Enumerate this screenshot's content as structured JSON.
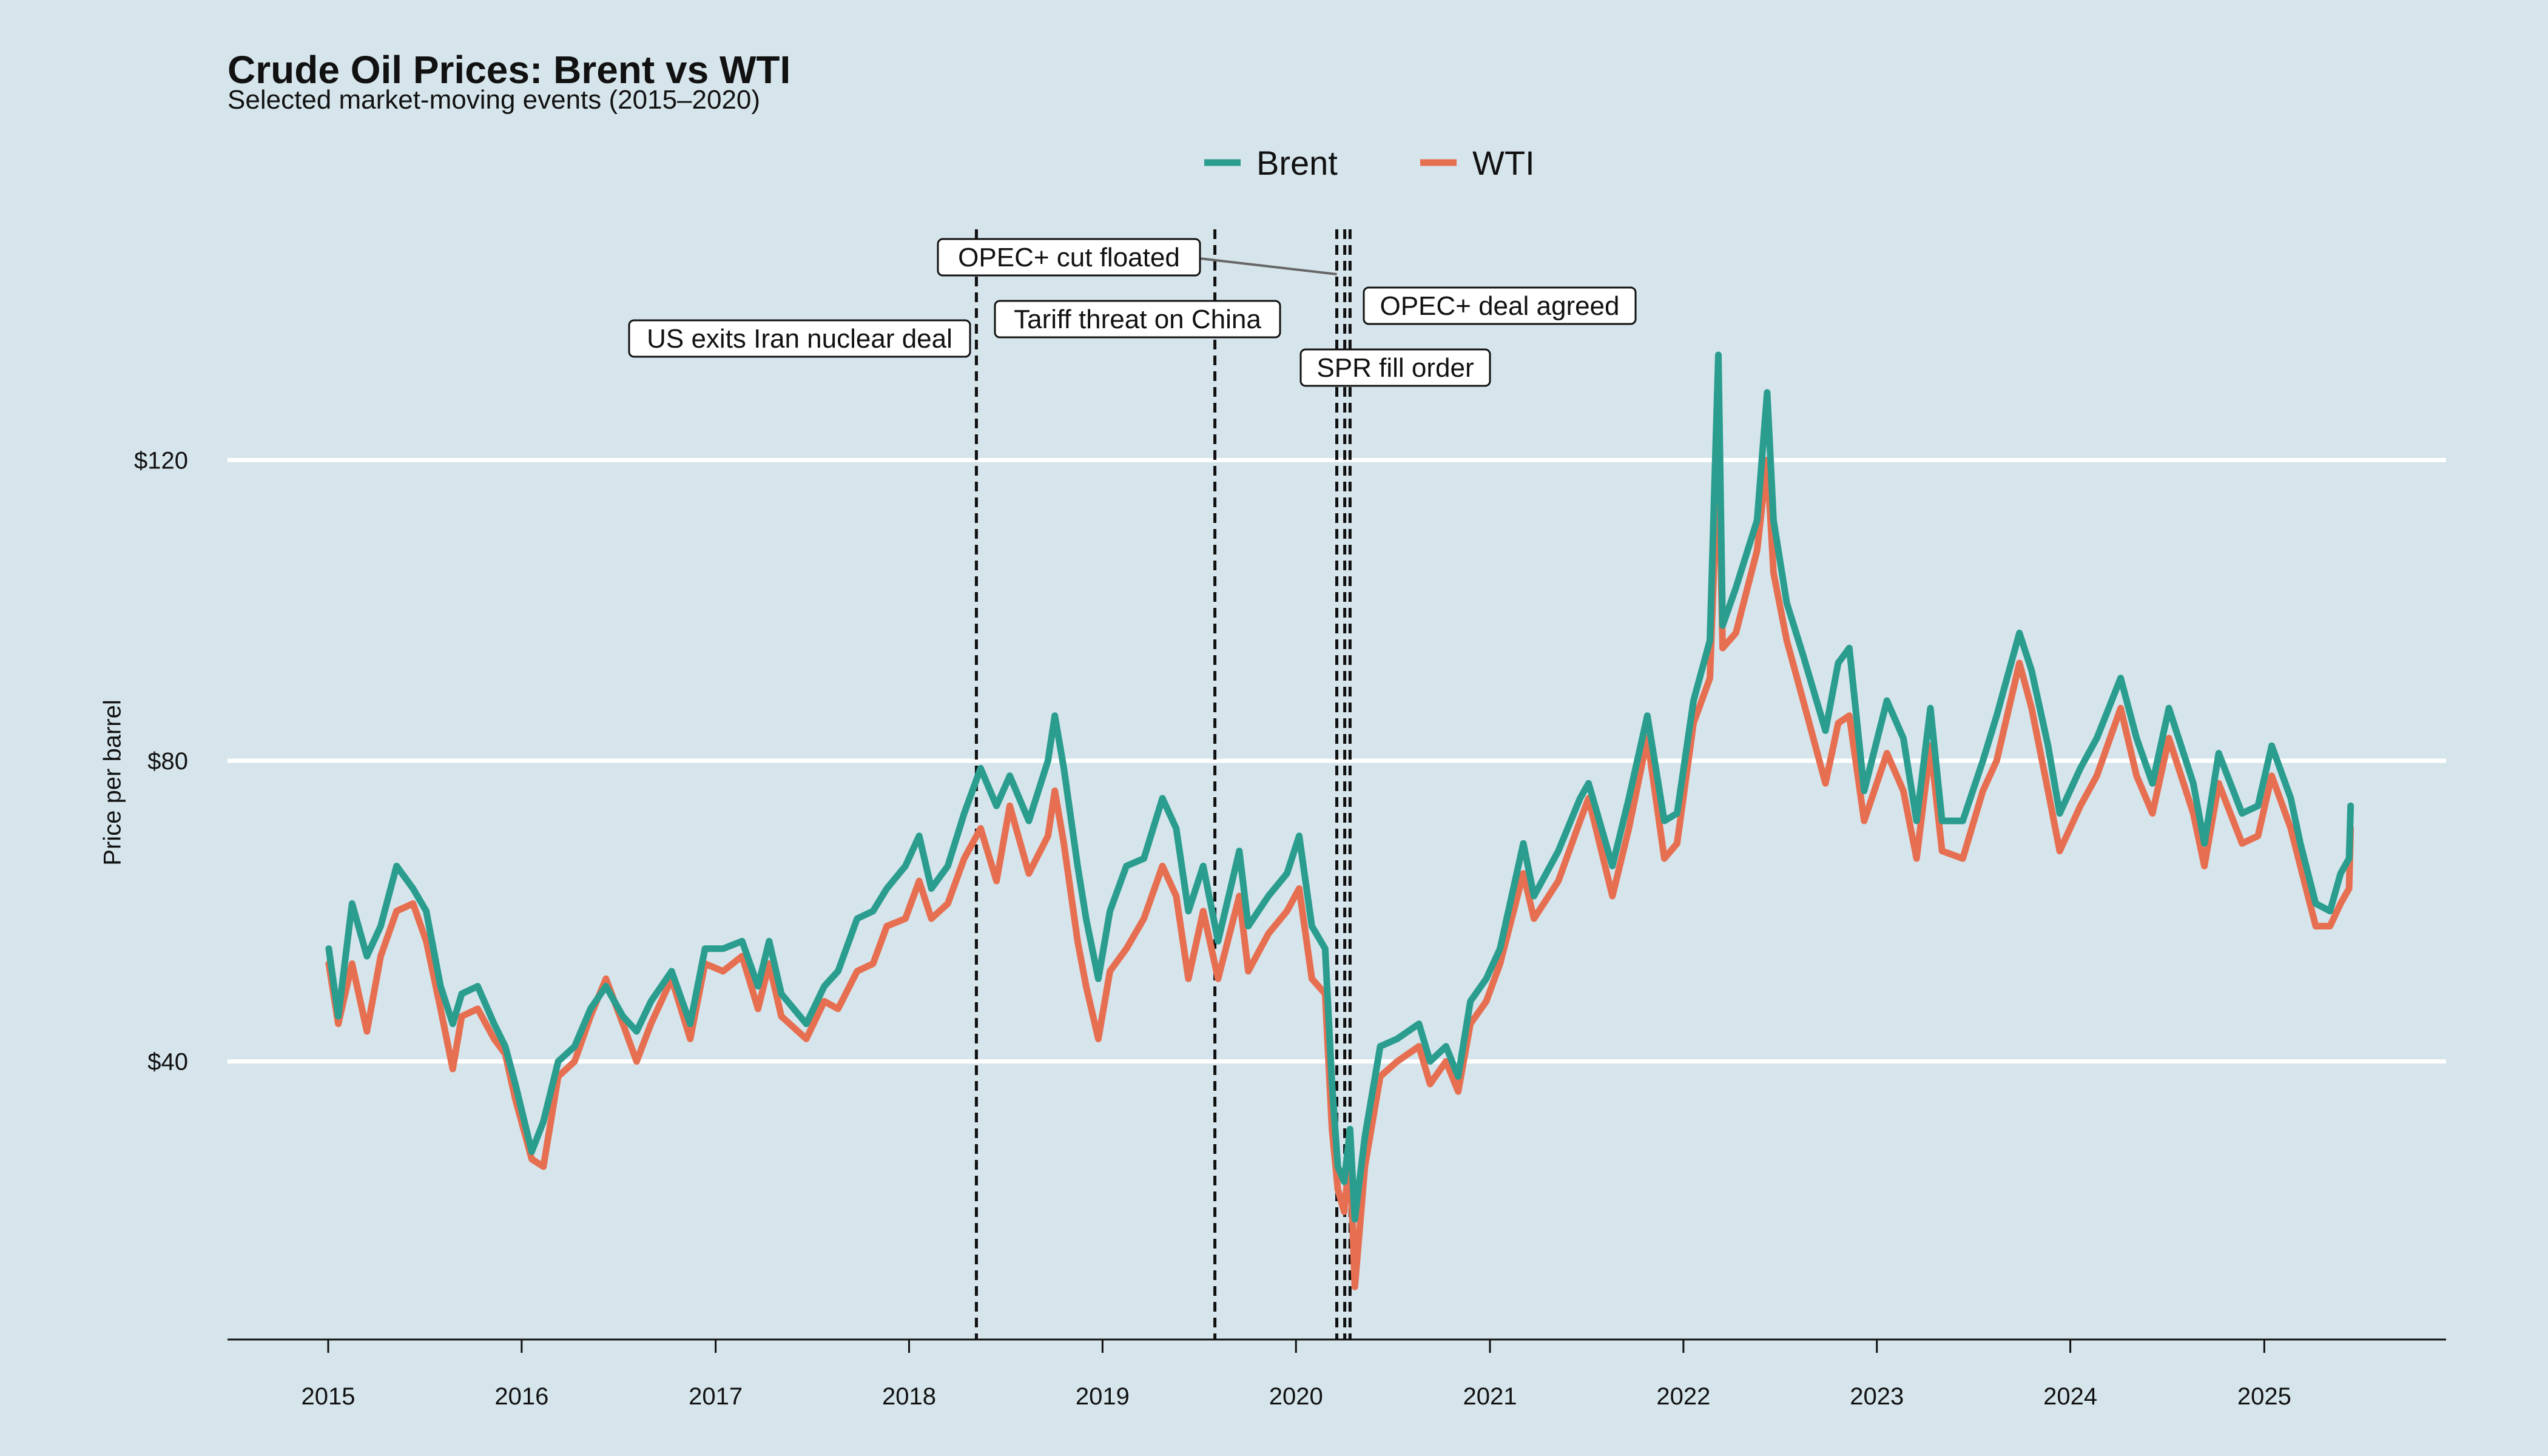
{
  "chart_data": {
    "type": "line",
    "title": "Crude Oil Prices: Brent vs WTI",
    "subtitle": "Selected market-moving events (2015–2020)",
    "xlabel": "",
    "ylabel": "Price per barrel",
    "x_ticks": [
      "2015",
      "2016",
      "2017",
      "2018",
      "2019",
      "2020",
      "2021",
      "2022",
      "2023",
      "2024",
      "2025"
    ],
    "y_ticks": [
      {
        "value": 40,
        "label": "$40"
      },
      {
        "value": 80,
        "label": "$80"
      },
      {
        "value": 120,
        "label": "$120"
      }
    ],
    "xlim": [
      "2014-06-25",
      "2025-12-10"
    ],
    "ylim": [
      3,
      157
    ],
    "grid": "horizontal",
    "legend_position": "top-center",
    "series": [
      {
        "name": "Brent",
        "color": "#2a9d8f",
        "points": [
          [
            "2015-01-02",
            55
          ],
          [
            "2015-01-20",
            46
          ],
          [
            "2015-02-15",
            61
          ],
          [
            "2015-03-15",
            54
          ],
          [
            "2015-04-10",
            58
          ],
          [
            "2015-05-10",
            66
          ],
          [
            "2015-06-10",
            63
          ],
          [
            "2015-07-05",
            60
          ],
          [
            "2015-08-01",
            50
          ],
          [
            "2015-08-24",
            45
          ],
          [
            "2015-09-10",
            49
          ],
          [
            "2015-10-10",
            50
          ],
          [
            "2015-11-10",
            45
          ],
          [
            "2015-12-01",
            42
          ],
          [
            "2015-12-20",
            37
          ],
          [
            "2016-01-20",
            28
          ],
          [
            "2016-02-11",
            32
          ],
          [
            "2016-03-10",
            40
          ],
          [
            "2016-04-10",
            42
          ],
          [
            "2016-05-10",
            47
          ],
          [
            "2016-06-08",
            50
          ],
          [
            "2016-07-10",
            46
          ],
          [
            "2016-08-05",
            44
          ],
          [
            "2016-09-01",
            48
          ],
          [
            "2016-10-10",
            52
          ],
          [
            "2016-11-14",
            45
          ],
          [
            "2016-12-12",
            55
          ],
          [
            "2017-01-15",
            55
          ],
          [
            "2017-02-20",
            56
          ],
          [
            "2017-03-22",
            50
          ],
          [
            "2017-04-12",
            56
          ],
          [
            "2017-05-05",
            49
          ],
          [
            "2017-06-21",
            45
          ],
          [
            "2017-07-25",
            50
          ],
          [
            "2017-08-20",
            52
          ],
          [
            "2017-09-25",
            59
          ],
          [
            "2017-10-25",
            60
          ],
          [
            "2017-11-20",
            63
          ],
          [
            "2017-12-25",
            66
          ],
          [
            "2018-01-20",
            70
          ],
          [
            "2018-02-12",
            63
          ],
          [
            "2018-03-15",
            66
          ],
          [
            "2018-04-15",
            73
          ],
          [
            "2018-05-16",
            79
          ],
          [
            "2018-06-15",
            74
          ],
          [
            "2018-07-10",
            78
          ],
          [
            "2018-08-15",
            72
          ],
          [
            "2018-09-20",
            80
          ],
          [
            "2018-10-03",
            86
          ],
          [
            "2018-10-20",
            79
          ],
          [
            "2018-11-15",
            66
          ],
          [
            "2018-12-01",
            59
          ],
          [
            "2018-12-24",
            51
          ],
          [
            "2019-01-15",
            60
          ],
          [
            "2019-02-15",
            66
          ],
          [
            "2019-03-20",
            67
          ],
          [
            "2019-04-24",
            75
          ],
          [
            "2019-05-20",
            71
          ],
          [
            "2019-06-12",
            60
          ],
          [
            "2019-07-10",
            66
          ],
          [
            "2019-08-07",
            56
          ],
          [
            "2019-09-16",
            68
          ],
          [
            "2019-10-03",
            58
          ],
          [
            "2019-11-10",
            62
          ],
          [
            "2019-12-15",
            65
          ],
          [
            "2020-01-07",
            70
          ],
          [
            "2020-01-31",
            58
          ],
          [
            "2020-02-25",
            55
          ],
          [
            "2020-03-09",
            37
          ],
          [
            "2020-03-20",
            26
          ],
          [
            "2020-04-01",
            24
          ],
          [
            "2020-04-12",
            31
          ],
          [
            "2020-04-21",
            19
          ],
          [
            "2020-05-10",
            30
          ],
          [
            "2020-06-08",
            42
          ],
          [
            "2020-07-10",
            43
          ],
          [
            "2020-08-20",
            45
          ],
          [
            "2020-09-10",
            40
          ],
          [
            "2020-10-10",
            42
          ],
          [
            "2020-11-02",
            38
          ],
          [
            "2020-11-25",
            48
          ],
          [
            "2020-12-25",
            51
          ],
          [
            "2021-01-20",
            55
          ],
          [
            "2021-03-05",
            69
          ],
          [
            "2021-03-25",
            62
          ],
          [
            "2021-05-10",
            68
          ],
          [
            "2021-06-20",
            75
          ],
          [
            "2021-07-06",
            77
          ],
          [
            "2021-08-20",
            66
          ],
          [
            "2021-09-20",
            75
          ],
          [
            "2021-10-25",
            86
          ],
          [
            "2021-11-26",
            72
          ],
          [
            "2021-12-20",
            73
          ],
          [
            "2022-01-20",
            88
          ],
          [
            "2022-02-20",
            96
          ],
          [
            "2022-03-08",
            134
          ],
          [
            "2022-03-16",
            98
          ],
          [
            "2022-04-10",
            103
          ],
          [
            "2022-05-20",
            112
          ],
          [
            "2022-06-08",
            129
          ],
          [
            "2022-06-20",
            112
          ],
          [
            "2022-07-15",
            101
          ],
          [
            "2022-08-15",
            94
          ],
          [
            "2022-09-26",
            84
          ],
          [
            "2022-10-20",
            93
          ],
          [
            "2022-11-10",
            95
          ],
          [
            "2022-12-08",
            76
          ],
          [
            "2023-01-20",
            88
          ],
          [
            "2023-02-20",
            83
          ],
          [
            "2023-03-17",
            72
          ],
          [
            "2023-04-12",
            87
          ],
          [
            "2023-05-04",
            72
          ],
          [
            "2023-06-12",
            72
          ],
          [
            "2023-07-20",
            80
          ],
          [
            "2023-08-15",
            86
          ],
          [
            "2023-09-27",
            97
          ],
          [
            "2023-10-20",
            92
          ],
          [
            "2023-11-20",
            82
          ],
          [
            "2023-12-12",
            73
          ],
          [
            "2024-01-20",
            79
          ],
          [
            "2024-02-20",
            83
          ],
          [
            "2024-04-05",
            91
          ],
          [
            "2024-05-05",
            83
          ],
          [
            "2024-06-04",
            77
          ],
          [
            "2024-07-05",
            87
          ],
          [
            "2024-08-20",
            77
          ],
          [
            "2024-09-10",
            69
          ],
          [
            "2024-10-07",
            81
          ],
          [
            "2024-11-20",
            73
          ],
          [
            "2024-12-20",
            74
          ],
          [
            "2025-01-15",
            82
          ],
          [
            "2025-02-20",
            75
          ],
          [
            "2025-03-10",
            69
          ],
          [
            "2025-04-08",
            61
          ],
          [
            "2025-05-05",
            60
          ],
          [
            "2025-05-25",
            65
          ],
          [
            "2025-06-10",
            67
          ],
          [
            "2025-06-13",
            74
          ]
        ]
      },
      {
        "name": "WTI",
        "color": "#e76f51",
        "points": [
          [
            "2015-01-02",
            53
          ],
          [
            "2015-01-20",
            45
          ],
          [
            "2015-02-15",
            53
          ],
          [
            "2015-03-15",
            44
          ],
          [
            "2015-04-10",
            54
          ],
          [
            "2015-05-10",
            60
          ],
          [
            "2015-06-10",
            61
          ],
          [
            "2015-07-05",
            56
          ],
          [
            "2015-08-01",
            47
          ],
          [
            "2015-08-24",
            39
          ],
          [
            "2015-09-10",
            46
          ],
          [
            "2015-10-10",
            47
          ],
          [
            "2015-11-10",
            43
          ],
          [
            "2015-12-01",
            41
          ],
          [
            "2015-12-20",
            35
          ],
          [
            "2016-01-20",
            27
          ],
          [
            "2016-02-11",
            26
          ],
          [
            "2016-03-10",
            38
          ],
          [
            "2016-04-10",
            40
          ],
          [
            "2016-05-10",
            46
          ],
          [
            "2016-06-08",
            51
          ],
          [
            "2016-07-10",
            45
          ],
          [
            "2016-08-05",
            40
          ],
          [
            "2016-09-01",
            45
          ],
          [
            "2016-10-10",
            51
          ],
          [
            "2016-11-14",
            43
          ],
          [
            "2016-12-12",
            53
          ],
          [
            "2017-01-15",
            52
          ],
          [
            "2017-02-20",
            54
          ],
          [
            "2017-03-22",
            47
          ],
          [
            "2017-04-12",
            53
          ],
          [
            "2017-05-05",
            46
          ],
          [
            "2017-06-21",
            43
          ],
          [
            "2017-07-25",
            48
          ],
          [
            "2017-08-20",
            47
          ],
          [
            "2017-09-25",
            52
          ],
          [
            "2017-10-25",
            53
          ],
          [
            "2017-11-20",
            58
          ],
          [
            "2017-12-25",
            59
          ],
          [
            "2018-01-20",
            64
          ],
          [
            "2018-02-12",
            59
          ],
          [
            "2018-03-15",
            61
          ],
          [
            "2018-04-15",
            67
          ],
          [
            "2018-05-16",
            71
          ],
          [
            "2018-06-15",
            64
          ],
          [
            "2018-07-10",
            74
          ],
          [
            "2018-08-15",
            65
          ],
          [
            "2018-09-20",
            70
          ],
          [
            "2018-10-03",
            76
          ],
          [
            "2018-10-20",
            69
          ],
          [
            "2018-11-15",
            56
          ],
          [
            "2018-12-01",
            50
          ],
          [
            "2018-12-24",
            43
          ],
          [
            "2019-01-15",
            52
          ],
          [
            "2019-02-15",
            55
          ],
          [
            "2019-03-20",
            59
          ],
          [
            "2019-04-24",
            66
          ],
          [
            "2019-05-20",
            62
          ],
          [
            "2019-06-12",
            51
          ],
          [
            "2019-07-10",
            60
          ],
          [
            "2019-08-07",
            51
          ],
          [
            "2019-09-16",
            62
          ],
          [
            "2019-10-03",
            52
          ],
          [
            "2019-11-10",
            57
          ],
          [
            "2019-12-15",
            60
          ],
          [
            "2020-01-07",
            63
          ],
          [
            "2020-01-31",
            51
          ],
          [
            "2020-02-25",
            49
          ],
          [
            "2020-03-09",
            31
          ],
          [
            "2020-03-20",
            23
          ],
          [
            "2020-04-01",
            20
          ],
          [
            "2020-04-12",
            28
          ],
          [
            "2020-04-21",
            10
          ],
          [
            "2020-05-10",
            26
          ],
          [
            "2020-06-08",
            38
          ],
          [
            "2020-07-10",
            40
          ],
          [
            "2020-08-20",
            42
          ],
          [
            "2020-09-10",
            37
          ],
          [
            "2020-10-10",
            40
          ],
          [
            "2020-11-02",
            36
          ],
          [
            "2020-11-25",
            45
          ],
          [
            "2020-12-25",
            48
          ],
          [
            "2021-01-20",
            53
          ],
          [
            "2021-03-05",
            65
          ],
          [
            "2021-03-25",
            59
          ],
          [
            "2021-05-10",
            64
          ],
          [
            "2021-06-20",
            72
          ],
          [
            "2021-07-06",
            75
          ],
          [
            "2021-08-20",
            62
          ],
          [
            "2021-09-20",
            71
          ],
          [
            "2021-10-25",
            83
          ],
          [
            "2021-11-26",
            67
          ],
          [
            "2021-12-20",
            69
          ],
          [
            "2022-01-20",
            85
          ],
          [
            "2022-02-20",
            91
          ],
          [
            "2022-03-08",
            122
          ],
          [
            "2022-03-16",
            95
          ],
          [
            "2022-04-10",
            97
          ],
          [
            "2022-05-20",
            108
          ],
          [
            "2022-06-08",
            120
          ],
          [
            "2022-06-20",
            105
          ],
          [
            "2022-07-15",
            96
          ],
          [
            "2022-08-15",
            88
          ],
          [
            "2022-09-26",
            77
          ],
          [
            "2022-10-20",
            85
          ],
          [
            "2022-11-10",
            86
          ],
          [
            "2022-12-08",
            72
          ],
          [
            "2023-01-20",
            81
          ],
          [
            "2023-02-20",
            76
          ],
          [
            "2023-03-17",
            67
          ],
          [
            "2023-04-12",
            82
          ],
          [
            "2023-05-04",
            68
          ],
          [
            "2023-06-12",
            67
          ],
          [
            "2023-07-20",
            76
          ],
          [
            "2023-08-15",
            80
          ],
          [
            "2023-09-27",
            93
          ],
          [
            "2023-10-20",
            87
          ],
          [
            "2023-11-20",
            76
          ],
          [
            "2023-12-12",
            68
          ],
          [
            "2024-01-20",
            74
          ],
          [
            "2024-02-20",
            78
          ],
          [
            "2024-04-05",
            87
          ],
          [
            "2024-05-05",
            78
          ],
          [
            "2024-06-04",
            73
          ],
          [
            "2024-07-05",
            83
          ],
          [
            "2024-08-20",
            73
          ],
          [
            "2024-09-10",
            66
          ],
          [
            "2024-10-07",
            77
          ],
          [
            "2024-11-20",
            69
          ],
          [
            "2024-12-20",
            70
          ],
          [
            "2025-01-15",
            78
          ],
          [
            "2025-02-20",
            71
          ],
          [
            "2025-03-10",
            66
          ],
          [
            "2025-04-08",
            58
          ],
          [
            "2025-05-05",
            58
          ],
          [
            "2025-05-25",
            61
          ],
          [
            "2025-06-10",
            63
          ],
          [
            "2025-06-13",
            71
          ]
        ]
      }
    ],
    "events": [
      {
        "date": "2018-05-08",
        "label": "US exits Iran nuclear deal"
      },
      {
        "date": "2019-08-01",
        "label": "Tariff threat on China"
      },
      {
        "date": "2020-03-18",
        "label": "OPEC+ cut floated"
      },
      {
        "date": "2020-04-02",
        "label": "SPR fill order"
      },
      {
        "date": "2020-04-12",
        "label": "OPEC+ deal agreed"
      }
    ]
  }
}
